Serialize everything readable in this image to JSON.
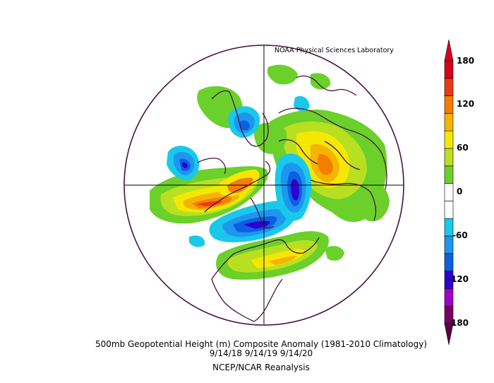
{
  "credit": "NOAA Physical Sciences Laboratory",
  "caption": {
    "line1": "500mb Geopotential Height (m) Composite Anomaly (1981-2010 Climatology)",
    "line2": "9/14/18 9/14/19 9/14/20",
    "line3": "NCEP/NCAR Reanalysis"
  },
  "colorbar": {
    "labels": [
      "180",
      "120",
      "60",
      "0",
      "-60",
      "-120",
      "-180"
    ],
    "colors": [
      "#7a0060",
      "#a000c8",
      "#2d00d4",
      "#0c5fe0",
      "#1e96f0",
      "#19c8ea",
      "#ffffff",
      "#ffffff",
      "#6bd02a",
      "#b8e020",
      "#f5e800",
      "#f5b400",
      "#f57d00",
      "#e83b10",
      "#d9001e"
    ]
  }
}
